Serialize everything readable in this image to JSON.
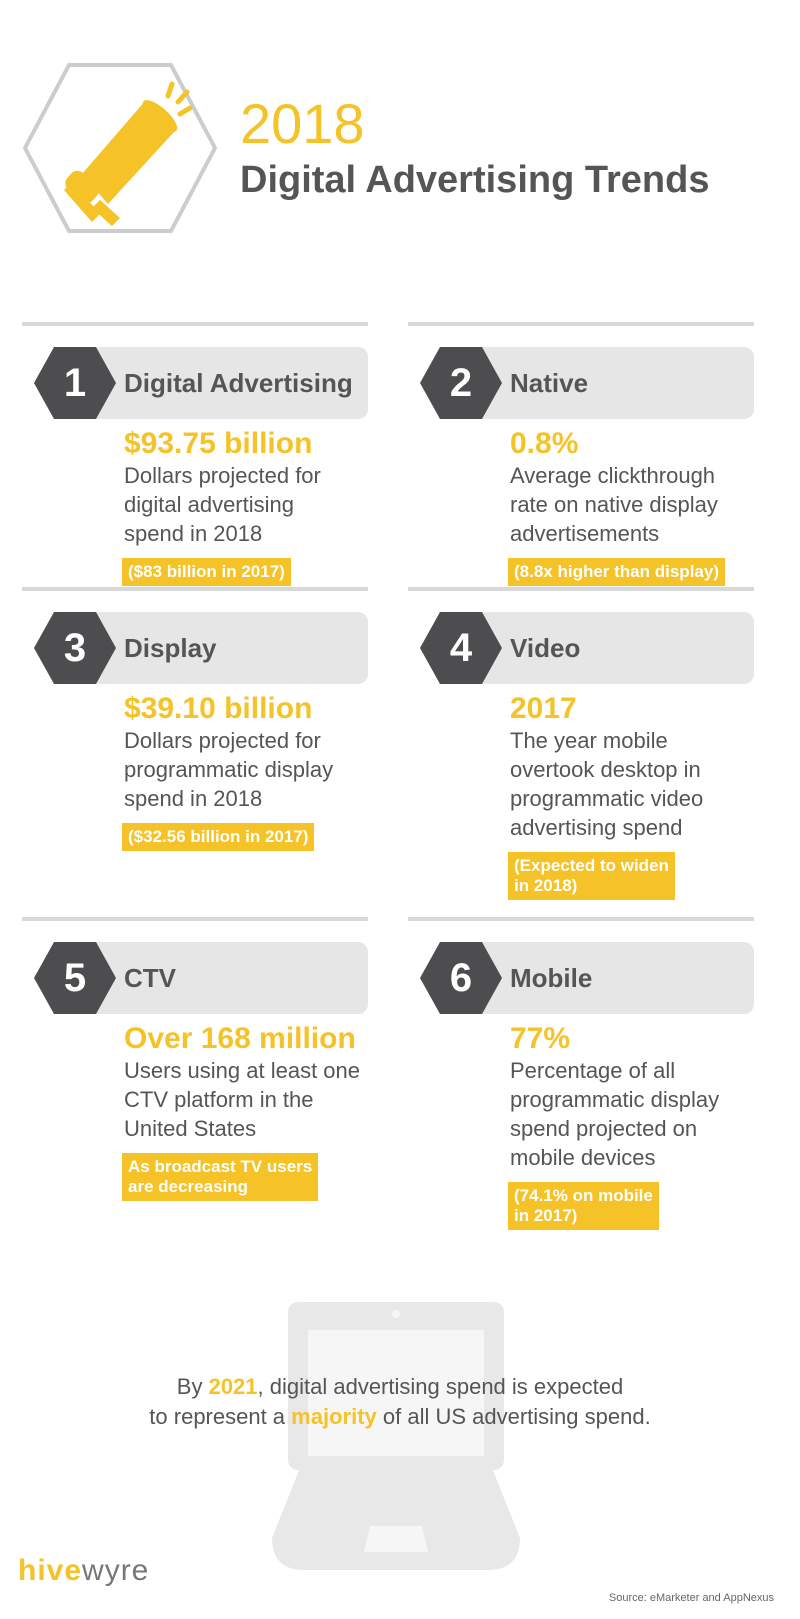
{
  "header": {
    "year": "2018",
    "title": "Digital Advertising Trends",
    "icon": "megaphone-icon"
  },
  "colors": {
    "accent": "#f5c228",
    "dark": "#555555",
    "band": "#e6e6e6",
    "hex": "#4d4d4f"
  },
  "sections": [
    {
      "number": "1",
      "label": "Digital Advertising",
      "stat": "$93.75 billion",
      "description": [
        "Dollars projected for",
        "digital advertising",
        "spend in 2018"
      ],
      "note": [
        "($83 billion in 2017)"
      ]
    },
    {
      "number": "2",
      "label": "Native",
      "stat": "0.8%",
      "description": [
        "Average clickthrough",
        "rate on native display",
        "advertisements"
      ],
      "note": [
        "(8.8x higher than display)"
      ]
    },
    {
      "number": "3",
      "label": "Display",
      "stat": "$39.10 billion",
      "description": [
        "Dollars projected for",
        "programmatic display",
        "spend in 2018"
      ],
      "note": [
        "($32.56 billion in 2017)"
      ]
    },
    {
      "number": "4",
      "label": "Video",
      "stat": "2017",
      "description": [
        "The year mobile",
        "overtook desktop in",
        "programmatic video",
        "advertising spend"
      ],
      "note": [
        "(Expected to widen",
        "in 2018)"
      ]
    },
    {
      "number": "5",
      "label": "CTV",
      "stat": "Over 168 million",
      "description": [
        "Users using at least one",
        "CTV platform in the",
        "United States"
      ],
      "note": [
        "As broadcast TV users",
        "are decreasing"
      ]
    },
    {
      "number": "6",
      "label": "Mobile",
      "stat": "77%",
      "description": [
        "Percentage of all",
        "programmatic display",
        "spend projected on",
        "mobile devices"
      ],
      "note": [
        "(74.1% on mobile",
        "in 2017)"
      ]
    }
  ],
  "footer": {
    "line1_pre": "By ",
    "line1_hl": "2021",
    "line1_post": ", digital advertising spend is expected",
    "line2_pre": "to represent a ",
    "line2_hl": "majority",
    "line2_post": " of all US advertising spend.",
    "icon": "laptop-icon"
  },
  "brand": {
    "logo_hive": "hive",
    "logo_wyre": "wyre"
  },
  "source": "Source: eMarketer and AppNexus"
}
